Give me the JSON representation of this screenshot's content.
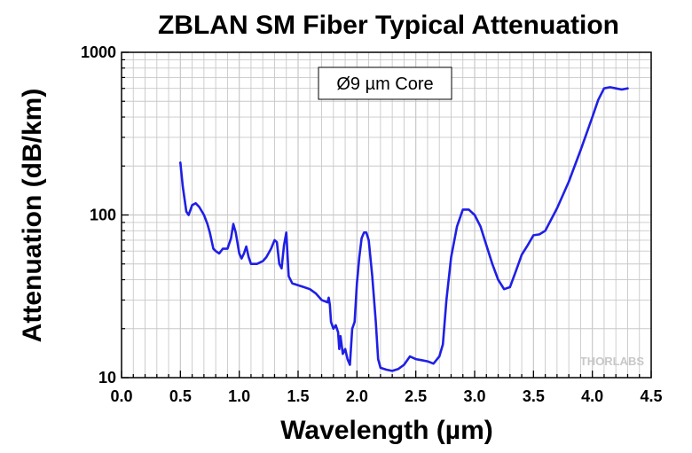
{
  "chart_data": {
    "type": "line",
    "title": "ZBLAN SM Fiber Typical Attenuation",
    "xlabel": "Wavelength (µm)",
    "ylabel": "Attenuation (dB/km)",
    "xlim": [
      0.0,
      4.5
    ],
    "ylim": [
      10,
      1000
    ],
    "yscale": "log",
    "grid": true,
    "x_ticks": [
      "0.0",
      "0.5",
      "1.0",
      "1.5",
      "2.0",
      "2.5",
      "3.0",
      "3.5",
      "4.0",
      "4.5"
    ],
    "y_ticks": [
      "10",
      "100",
      "1000"
    ],
    "annotation": "Ø9 µm Core",
    "logo": "THORLABS",
    "line_color": "#1f1fe6",
    "series": [
      {
        "x": [
          0.5,
          0.52,
          0.55,
          0.57,
          0.6,
          0.63,
          0.66,
          0.7,
          0.73,
          0.75,
          0.78,
          0.8,
          0.83,
          0.86,
          0.9,
          0.93,
          0.95,
          0.97,
          1.0,
          1.02,
          1.04,
          1.06,
          1.08,
          1.1,
          1.15,
          1.2,
          1.23,
          1.27,
          1.3,
          1.32,
          1.34,
          1.36,
          1.38,
          1.4,
          1.42,
          1.45,
          1.5,
          1.55,
          1.6,
          1.65,
          1.7,
          1.75,
          1.76,
          1.77,
          1.78,
          1.8,
          1.82,
          1.84,
          1.85,
          1.86,
          1.88,
          1.9,
          1.92,
          1.94,
          1.96,
          1.98,
          2.0,
          2.02,
          2.04,
          2.06,
          2.08,
          2.1,
          2.13,
          2.16,
          2.18,
          2.2,
          2.25,
          2.3,
          2.35,
          2.4,
          2.45,
          2.5,
          2.55,
          2.6,
          2.65,
          2.7,
          2.73,
          2.76,
          2.8,
          2.85,
          2.9,
          2.95,
          3.0,
          3.05,
          3.1,
          3.15,
          3.2,
          3.25,
          3.3,
          3.35,
          3.4,
          3.45,
          3.5,
          3.55,
          3.6,
          3.7,
          3.8,
          3.9,
          4.0,
          4.05,
          4.1,
          4.15,
          4.2,
          4.25,
          4.3
        ],
        "y": [
          210,
          150,
          105,
          100,
          115,
          118,
          112,
          100,
          88,
          78,
          62,
          60,
          58,
          62,
          62,
          72,
          88,
          78,
          58,
          54,
          58,
          64,
          55,
          50,
          50,
          52,
          55,
          62,
          70,
          68,
          50,
          47,
          65,
          78,
          42,
          38,
          37,
          36,
          35,
          33,
          30,
          29,
          31,
          28,
          22,
          20,
          21,
          19,
          15,
          18,
          14,
          15,
          13,
          12,
          20,
          22,
          38,
          55,
          72,
          78,
          78,
          70,
          42,
          22,
          13,
          11.5,
          11.2,
          11.0,
          11.3,
          12.0,
          13.5,
          13.0,
          12.8,
          12.6,
          12.2,
          13.5,
          16,
          30,
          55,
          85,
          108,
          108,
          100,
          85,
          65,
          50,
          40,
          35,
          36,
          45,
          57,
          65,
          75,
          76,
          80,
          110,
          160,
          250,
          400,
          510,
          600,
          610,
          600,
          590,
          600
        ]
      }
    ]
  }
}
